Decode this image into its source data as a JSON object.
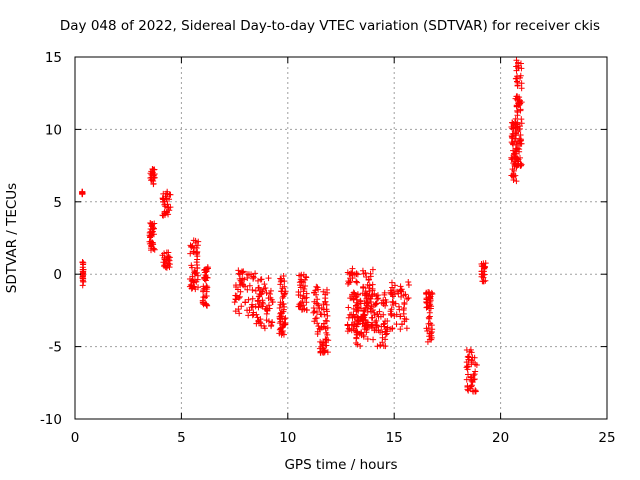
{
  "chart_data": {
    "type": "scatter",
    "title": "Day 048 of 2022, Sidereal Day-to-day VTEC variation (SDTVAR) for receiver ckis",
    "xlabel": "GPS time / hours",
    "ylabel": "SDTVAR / TECUs",
    "xlim": [
      0,
      25
    ],
    "ylim": [
      -10,
      15
    ],
    "xticks": [
      0,
      5,
      10,
      15,
      20,
      25
    ],
    "yticks": [
      -10,
      -5,
      0,
      5,
      10,
      15
    ],
    "grid": true,
    "marker": "+",
    "color": "#ff0000",
    "clusters": [
      {
        "x": [
          0.35,
          0.4
        ],
        "y": [
          -0.8,
          0.9
        ]
      },
      {
        "x": [
          0.33,
          0.36
        ],
        "y": [
          5.5,
          5.7
        ]
      },
      {
        "x": [
          3.5,
          3.75
        ],
        "y": [
          6.2,
          7.3
        ]
      },
      {
        "x": [
          3.5,
          3.75
        ],
        "y": [
          1.5,
          3.8
        ]
      },
      {
        "x": [
          4.1,
          4.5
        ],
        "y": [
          4.0,
          5.7
        ]
      },
      {
        "x": [
          4.1,
          4.5
        ],
        "y": [
          0.3,
          1.6
        ]
      },
      {
        "x": [
          5.4,
          5.8
        ],
        "y": [
          -1.2,
          2.4
        ]
      },
      {
        "x": [
          6.0,
          6.25
        ],
        "y": [
          -2.2,
          0.5
        ]
      },
      {
        "x": [
          7.5,
          8.5
        ],
        "y": [
          -3.0,
          0.3
        ]
      },
      {
        "x": [
          8.5,
          9.3
        ],
        "y": [
          -3.8,
          0.0
        ]
      },
      {
        "x": [
          9.6,
          9.9
        ],
        "y": [
          -4.2,
          0.0
        ]
      },
      {
        "x": [
          10.5,
          10.9
        ],
        "y": [
          -2.5,
          0.0
        ]
      },
      {
        "x": [
          11.2,
          11.9
        ],
        "y": [
          -4.2,
          -0.8
        ]
      },
      {
        "x": [
          11.5,
          11.9
        ],
        "y": [
          -5.5,
          -4.4
        ]
      },
      {
        "x": [
          12.8,
          13.3
        ],
        "y": [
          -4.0,
          0.5
        ]
      },
      {
        "x": [
          13.2,
          13.8
        ],
        "y": [
          -5.0,
          -1.8
        ]
      },
      {
        "x": [
          13.5,
          14.0
        ],
        "y": [
          -3.8,
          0.5
        ]
      },
      {
        "x": [
          14.0,
          14.7
        ],
        "y": [
          -5.0,
          -1.2
        ]
      },
      {
        "x": [
          14.8,
          15.7
        ],
        "y": [
          -3.8,
          -0.5
        ]
      },
      {
        "x": [
          16.5,
          16.8
        ],
        "y": [
          -4.8,
          -1.2
        ]
      },
      {
        "x": [
          18.4,
          18.9
        ],
        "y": [
          -8.2,
          -5.2
        ]
      },
      {
        "x": [
          19.1,
          19.3
        ],
        "y": [
          -0.5,
          0.8
        ]
      },
      {
        "x": [
          20.5,
          20.75
        ],
        "y": [
          6.2,
          10.5
        ]
      },
      {
        "x": [
          20.7,
          21.0
        ],
        "y": [
          7.3,
          14.8
        ]
      }
    ]
  }
}
